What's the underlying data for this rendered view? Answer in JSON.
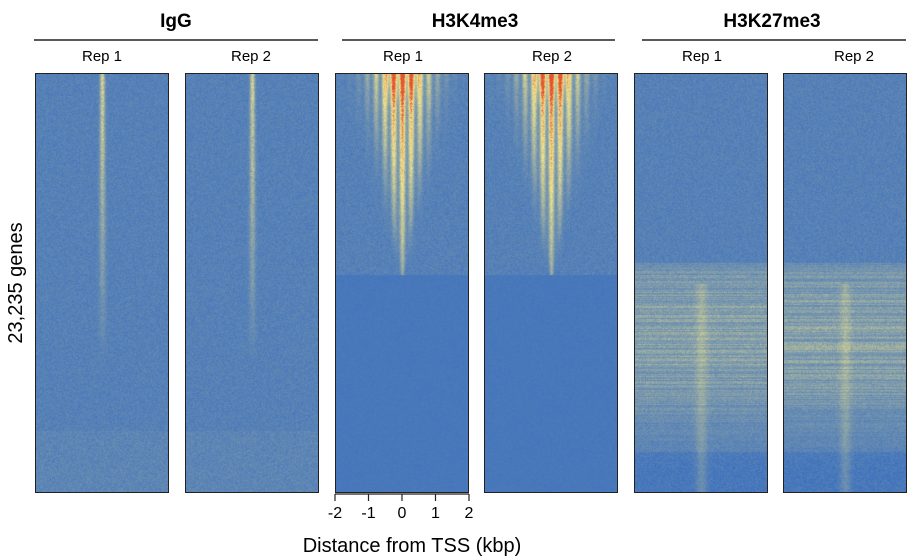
{
  "chart_data": {
    "type": "heatmap",
    "ylabel": "23,235 genes",
    "xlabel": "Distance from TSS (kbp)",
    "x_ticks": [
      -2,
      -1,
      0,
      1,
      2
    ],
    "xlim": [
      -2,
      2
    ],
    "colormap": [
      "#3a6fbf",
      "#f3e58a",
      "#e4532f"
    ],
    "groups": [
      {
        "title": "IgG",
        "panels": [
          {
            "label": "Rep 1",
            "pattern": "igg",
            "peak_intensity": 0.45,
            "extent": 0.7
          },
          {
            "label": "Rep 2",
            "pattern": "igg",
            "peak_intensity": 0.45,
            "extent": 0.7
          }
        ]
      },
      {
        "title": "H3K4me3",
        "panels": [
          {
            "label": "Rep 1",
            "pattern": "h3k4me3",
            "peak_intensity": 1.0,
            "extent": 0.48
          },
          {
            "label": "Rep 2",
            "pattern": "h3k4me3",
            "peak_intensity": 1.0,
            "extent": 0.48
          }
        ]
      },
      {
        "title": "H3K27me3",
        "panels": [
          {
            "label": "Rep 1",
            "pattern": "h3k27me3",
            "peak_intensity": 0.35,
            "extent": 0.45
          },
          {
            "label": "Rep 2",
            "pattern": "h3k27me3",
            "peak_intensity": 0.35,
            "extent": 0.45
          }
        ]
      }
    ]
  }
}
